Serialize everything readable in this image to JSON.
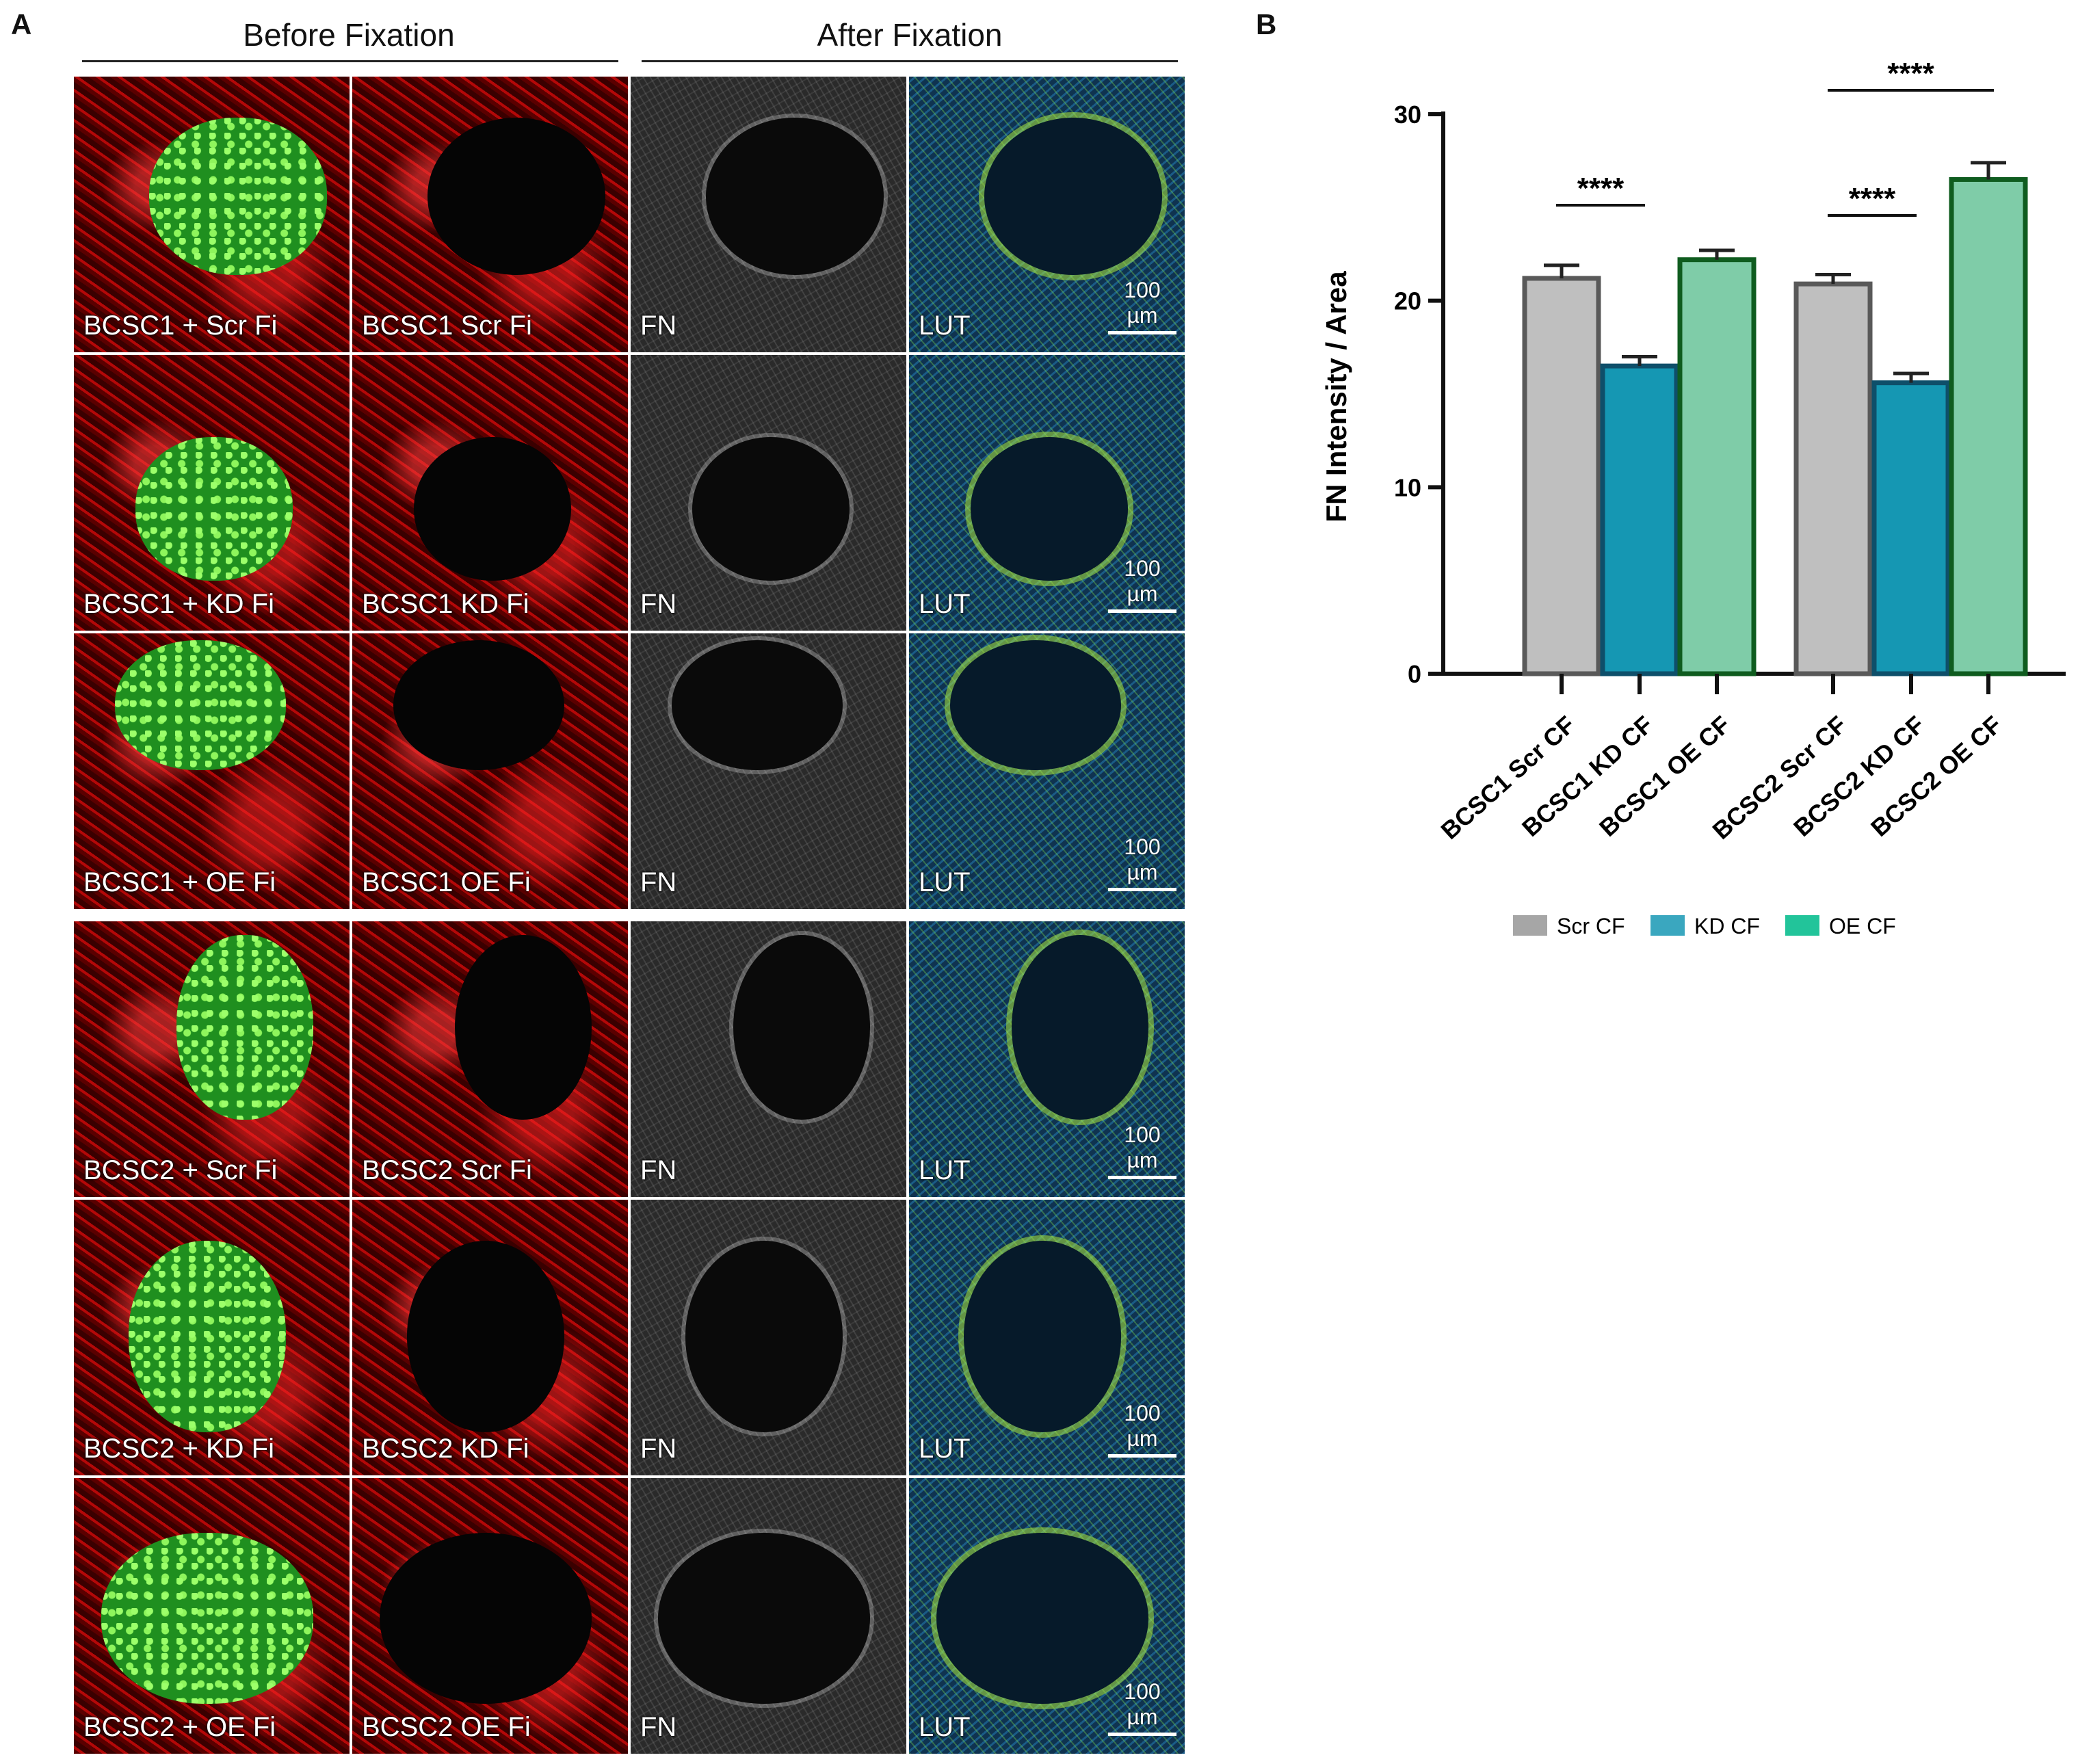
{
  "panel_a": {
    "letter": "A",
    "header_before": "Before Fixation",
    "header_after": "After Fixation",
    "scale_bar": "100 µm",
    "rows": [
      {
        "c1": "BCSC1 + Scr Fi",
        "c2": "BCSC1 Scr Fi",
        "c3": "FN",
        "c4": "LUT"
      },
      {
        "c1": "BCSC1 + KD Fi",
        "c2": "BCSC1 KD Fi",
        "c3": "FN",
        "c4": "LUT"
      },
      {
        "c1": "BCSC1 + OE Fi",
        "c2": "BCSC1 OE Fi",
        "c3": "FN",
        "c4": "LUT"
      },
      {
        "c1": "BCSC2 + Scr Fi",
        "c2": "BCSC2 Scr Fi",
        "c3": "FN",
        "c4": "LUT"
      },
      {
        "c1": "BCSC2 + KD Fi",
        "c2": "BCSC2 KD Fi",
        "c3": "FN",
        "c4": "LUT"
      },
      {
        "c1": "BCSC2 + OE Fi",
        "c2": "BCSC2 OE Fi",
        "c3": "FN",
        "c4": "LUT"
      }
    ]
  },
  "panel_b": {
    "letter": "B"
  },
  "chart_data": {
    "type": "bar",
    "ylabel": "FN Intensity / Area",
    "ylim": [
      0,
      30
    ],
    "yticks": [
      0,
      10,
      20,
      30
    ],
    "categories": [
      "BCSC1 Scr CF",
      "BCSC1 KD CF",
      "BCSC1 OE CF",
      "BCSC2 Scr CF",
      "BCSC2 KD CF",
      "BCSC2 OE CF"
    ],
    "values": [
      21.2,
      16.5,
      22.2,
      20.9,
      15.6,
      26.5
    ],
    "errors": [
      0.7,
      0.5,
      0.5,
      0.5,
      0.5,
      0.9
    ],
    "groups": [
      "Scr CF",
      "KD CF",
      "OE CF",
      "Scr CF",
      "KD CF",
      "OE CF"
    ],
    "legend": [
      {
        "name": "Scr CF",
        "color": "#a6a6a6"
      },
      {
        "name": "KD CF",
        "color": "#3aa7bf"
      },
      {
        "name": "OE CF",
        "color": "#22c49a"
      }
    ],
    "bar_colors": {
      "Scr CF": {
        "fill": "#bfbfbf",
        "stroke": "#595959"
      },
      "KD CF": {
        "fill": "#1597b3",
        "stroke": "#0e4f6a"
      },
      "OE CF": {
        "fill": "#7fcca8",
        "stroke": "#0f5c1f"
      }
    },
    "significance": [
      {
        "from": 0,
        "to": 1,
        "label": "****"
      },
      {
        "from": 3,
        "to": 4,
        "label": "****"
      },
      {
        "from": 3,
        "to": 5,
        "label": "****"
      }
    ],
    "legend_position": "bottom"
  }
}
